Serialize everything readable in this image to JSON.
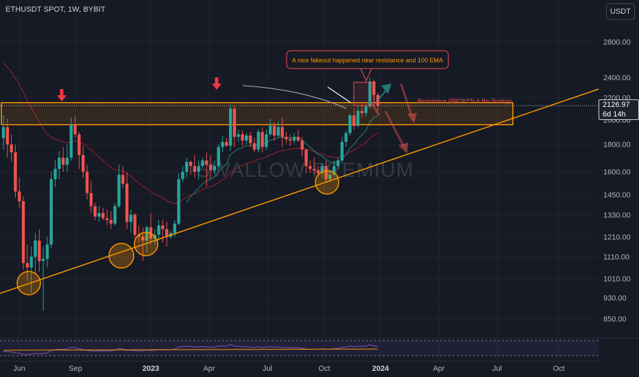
{
  "header": {
    "symbol": "ETHUSDT SPOT, 1W, BYBIT",
    "currency": "USDT"
  },
  "last_price": {
    "value": "2126.97",
    "countdown": "6d 14h"
  },
  "watermark": "SWALLOW PREMIUM",
  "annotations": {
    "callout": "A nice fakeout happened near resistance and 100 EMA",
    "resistance": "Resistance (BROKEN & Re-Testing)"
  },
  "colors": {
    "background": "#161a25",
    "grid": "#202431",
    "bull": "#26a69a",
    "bear": "#ef5350",
    "zone": "#ff9800",
    "trendline": "#ff9800",
    "ema_red": "#8b1f26",
    "ema_teal": "#21806f",
    "callout_border": "#ef5350",
    "annotation_text": "#ff9800",
    "resistance_text": "#ef5350"
  },
  "chart_data": {
    "type": "candlestick",
    "y_axis_ticks": [
      2800,
      2400,
      2200,
      2000,
      1800,
      1600,
      1450,
      1330,
      1210,
      1110,
      1010,
      930,
      850
    ],
    "y_axis_labels": [
      "2800.00",
      "2400.00",
      "2200.00",
      "2000.00",
      "1800.00",
      "1600.00",
      "1450.00",
      "1330.00",
      "1210.00",
      "1110.00",
      "1010.00",
      "930.00",
      "850.00"
    ],
    "x_axis_labels": [
      "Jun",
      "Sep",
      "2023",
      "Apr",
      "Jul",
      "Oct",
      "2024",
      "Apr",
      "Jul",
      "Oct"
    ],
    "resistance_zone": [
      1960,
      2155
    ],
    "last_price": 2126.97,
    "candles": [
      [
        1850,
        2040,
        1760,
        1940
      ],
      [
        1940,
        2010,
        1700,
        1800
      ],
      [
        1800,
        1880,
        1670,
        1740
      ],
      [
        1740,
        1800,
        1430,
        1470
      ],
      [
        1470,
        1560,
        1370,
        1410
      ],
      [
        1410,
        1440,
        1050,
        1080
      ],
      [
        1080,
        1170,
        1000,
        1060
      ],
      [
        1060,
        1160,
        950,
        1110
      ],
      [
        1110,
        1230,
        1030,
        1190
      ],
      [
        1190,
        1250,
        1040,
        1090
      ],
      [
        1090,
        1160,
        880,
        1100
      ],
      [
        1100,
        1210,
        1060,
        1170
      ],
      [
        1170,
        1600,
        1150,
        1550
      ],
      [
        1550,
        1680,
        1500,
        1620
      ],
      [
        1620,
        1750,
        1550,
        1700
      ],
      [
        1700,
        1780,
        1600,
        1650
      ],
      [
        1650,
        1800,
        1600,
        1700
      ],
      [
        1700,
        2020,
        1680,
        1960
      ],
      [
        1960,
        2030,
        1850,
        1880
      ],
      [
        1880,
        1900,
        1620,
        1720
      ],
      [
        1720,
        1790,
        1560,
        1600
      ],
      [
        1600,
        1650,
        1420,
        1460
      ],
      [
        1460,
        1540,
        1340,
        1380
      ],
      [
        1380,
        1400,
        1300,
        1320
      ],
      [
        1320,
        1380,
        1290,
        1340
      ],
      [
        1340,
        1370,
        1300,
        1310
      ],
      [
        1310,
        1360,
        1270,
        1300
      ],
      [
        1300,
        1350,
        1250,
        1280
      ],
      [
        1280,
        1400,
        1270,
        1380
      ],
      [
        1380,
        1650,
        1370,
        1580
      ],
      [
        1580,
        1640,
        1490,
        1520
      ],
      [
        1520,
        1600,
        1250,
        1290
      ],
      [
        1290,
        1360,
        1230,
        1330
      ],
      [
        1330,
        1340,
        1200,
        1220
      ],
      [
        1220,
        1270,
        1180,
        1210
      ],
      [
        1210,
        1260,
        1090,
        1190
      ],
      [
        1190,
        1270,
        1130,
        1260
      ],
      [
        1260,
        1340,
        1170,
        1200
      ],
      [
        1200,
        1250,
        1170,
        1220
      ],
      [
        1220,
        1300,
        1190,
        1270
      ],
      [
        1270,
        1300,
        1180,
        1250
      ],
      [
        1250,
        1290,
        1160,
        1210
      ],
      [
        1210,
        1240,
        1200,
        1230
      ],
      [
        1230,
        1300,
        1210,
        1280
      ],
      [
        1280,
        1590,
        1270,
        1550
      ],
      [
        1550,
        1640,
        1530,
        1600
      ],
      [
        1600,
        1700,
        1560,
        1670
      ],
      [
        1670,
        1680,
        1580,
        1640
      ],
      [
        1640,
        1720,
        1560,
        1600
      ],
      [
        1600,
        1680,
        1550,
        1640
      ],
      [
        1640,
        1700,
        1630,
        1680
      ],
      [
        1680,
        1740,
        1500,
        1650
      ],
      [
        1650,
        1720,
        1550,
        1610
      ],
      [
        1610,
        1680,
        1590,
        1640
      ],
      [
        1640,
        1800,
        1620,
        1780
      ],
      [
        1780,
        1870,
        1740,
        1820
      ],
      [
        1820,
        1850,
        1780,
        1790
      ],
      [
        1790,
        2140,
        1750,
        2100
      ],
      [
        2100,
        2130,
        1780,
        1860
      ],
      [
        1860,
        1920,
        1820,
        1880
      ],
      [
        1880,
        1910,
        1790,
        1830
      ],
      [
        1830,
        1890,
        1800,
        1870
      ],
      [
        1870,
        1900,
        1780,
        1810
      ],
      [
        1810,
        1850,
        1740,
        1760
      ],
      [
        1760,
        1920,
        1740,
        1900
      ],
      [
        1900,
        1940,
        1740,
        1780
      ],
      [
        1780,
        1920,
        1760,
        1880
      ],
      [
        1880,
        2010,
        1860,
        1950
      ],
      [
        1950,
        1980,
        1830,
        1870
      ],
      [
        1870,
        1990,
        1850,
        1940
      ],
      [
        1940,
        2020,
        1780,
        1860
      ],
      [
        1860,
        1900,
        1810,
        1840
      ],
      [
        1840,
        1880,
        1790,
        1830
      ],
      [
        1830,
        1890,
        1810,
        1860
      ],
      [
        1860,
        1920,
        1820,
        1830
      ],
      [
        1830,
        1860,
        1710,
        1760
      ],
      [
        1760,
        1770,
        1590,
        1640
      ],
      [
        1640,
        1680,
        1590,
        1620
      ],
      [
        1620,
        1700,
        1580,
        1610
      ],
      [
        1610,
        1640,
        1570,
        1590
      ],
      [
        1590,
        1660,
        1560,
        1640
      ],
      [
        1640,
        1680,
        1530,
        1550
      ],
      [
        1550,
        1600,
        1530,
        1580
      ],
      [
        1580,
        1680,
        1560,
        1640
      ],
      [
        1640,
        1700,
        1620,
        1680
      ],
      [
        1680,
        1860,
        1660,
        1820
      ],
      [
        1820,
        1910,
        1780,
        1890
      ],
      [
        1890,
        2060,
        1870,
        2040
      ],
      [
        2040,
        2100,
        1920,
        1950
      ],
      [
        1950,
        2130,
        1940,
        2080
      ],
      [
        2080,
        2140,
        2020,
        2060
      ],
      [
        2060,
        2140,
        2030,
        2120
      ],
      [
        2120,
        2400,
        2100,
        2360
      ],
      [
        2360,
        2380,
        2170,
        2227
      ],
      [
        2227,
        2250,
        2080,
        2127
      ]
    ]
  }
}
